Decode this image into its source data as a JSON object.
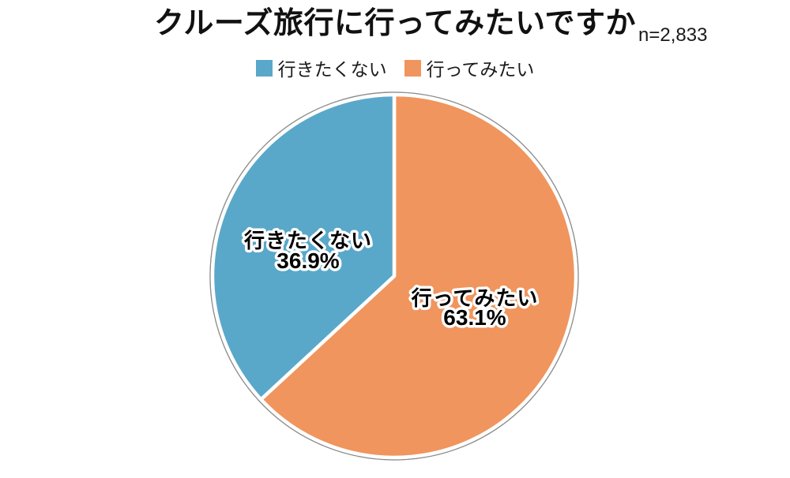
{
  "header": {
    "title": "クルーズ旅行に行ってみたいですか",
    "sample_size": "n=2,833"
  },
  "legend": {
    "items": [
      {
        "label": "行きたくない",
        "color": "#59A8C9"
      },
      {
        "label": "行ってみたい",
        "color": "#F0955D"
      }
    ]
  },
  "chart_data": {
    "type": "pie",
    "title": "クルーズ旅行に行ってみたいですか",
    "sample_size_label": "n=2,833",
    "sample_size": 2833,
    "unit": "%",
    "start_angle_deg": 0,
    "direction": "clockwise",
    "legend_position": "top",
    "background": "#FFFFFF",
    "outline_ring_color": "#8C8C8C",
    "slices": [
      {
        "label": "行ってみたい",
        "value": 63.1,
        "display": "63.1%",
        "color": "#F0955D"
      },
      {
        "label": "行きたくない",
        "value": 36.9,
        "display": "36.9%",
        "color": "#59A8C9"
      }
    ]
  }
}
